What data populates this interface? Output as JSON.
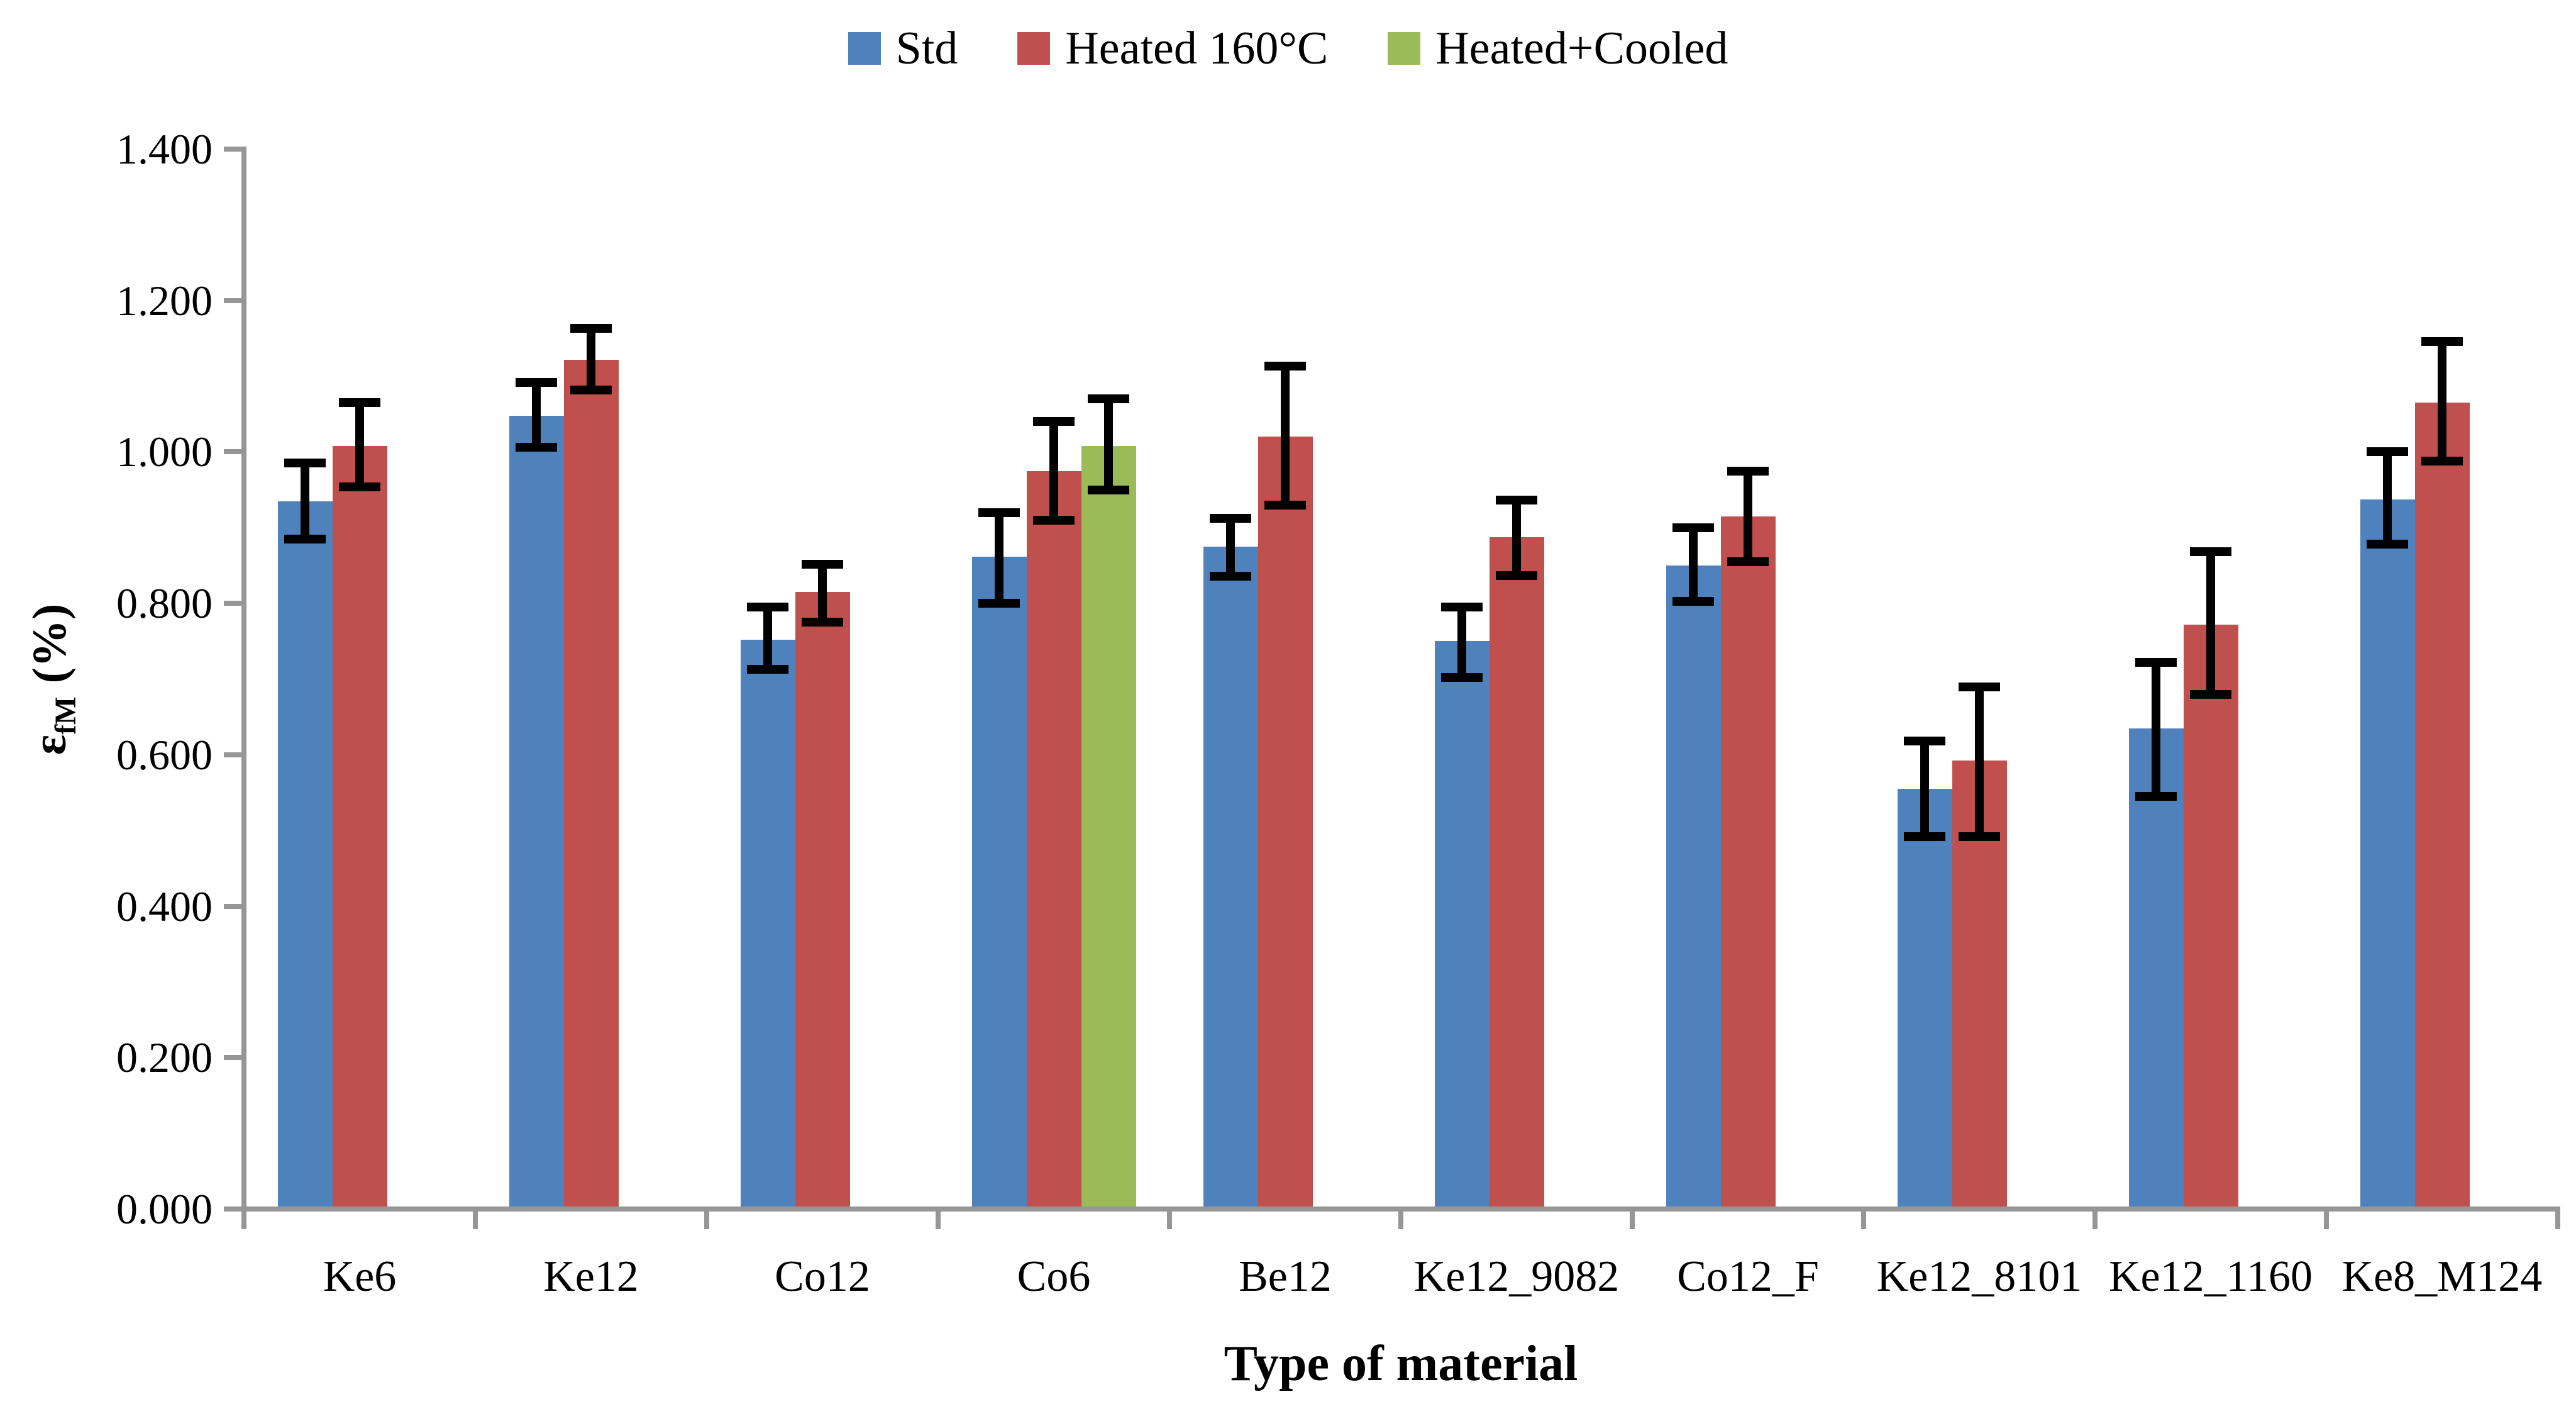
{
  "chart_data": {
    "type": "bar",
    "title": "",
    "xlabel": "Type of material",
    "ylabel": "εfM (%)",
    "ylabel_parts": {
      "symbol": "ε",
      "sub": "fM",
      "unit": "(%)"
    },
    "ylim": [
      0,
      1.4
    ],
    "ytick_step": 0.2,
    "ytick_labels": [
      "0.000",
      "0.200",
      "0.400",
      "0.600",
      "0.800",
      "1.000",
      "1.200",
      "1.400"
    ],
    "grid": "off",
    "legend_position": "top",
    "axis_color": "#969696",
    "error_bar_color": "#000000",
    "categories": [
      "Ke6",
      "Ke12",
      "Co12",
      "Co6",
      "Be12",
      "Ke12_9082",
      "Co12_F",
      "Ke12_8101",
      "Ke12_1160",
      "Ke8_M124"
    ],
    "series": [
      {
        "name": "Std",
        "color": "#4F81BD",
        "values": [
          0.935,
          1.048,
          0.752,
          0.862,
          0.875,
          0.75,
          0.85,
          0.555,
          0.635,
          0.937
        ],
        "err_lo": [
          0.885,
          1.006,
          0.713,
          0.8,
          0.836,
          0.702,
          0.803,
          0.492,
          0.545,
          0.878
        ],
        "err_hi": [
          0.985,
          1.092,
          0.795,
          0.92,
          0.912,
          0.795,
          0.9,
          0.618,
          0.722,
          1.0
        ]
      },
      {
        "name": "Heated 160°C",
        "color": "#C0504D",
        "values": [
          1.008,
          1.122,
          0.815,
          0.975,
          1.02,
          0.887,
          0.915,
          0.592,
          0.772,
          1.065
        ],
        "err_lo": [
          0.954,
          1.082,
          0.775,
          0.91,
          0.93,
          0.837,
          0.855,
          0.492,
          0.68,
          0.988
        ],
        "err_hi": [
          1.065,
          1.163,
          0.852,
          1.04,
          1.113,
          0.936,
          0.975,
          0.69,
          0.868,
          1.146
        ]
      },
      {
        "name": "Heated+Cooled",
        "color": "#9BBB59",
        "values": [
          null,
          null,
          null,
          1.008,
          null,
          null,
          null,
          null,
          null,
          null
        ],
        "err_lo": [
          null,
          null,
          null,
          0.95,
          null,
          null,
          null,
          null,
          null,
          null
        ],
        "err_hi": [
          null,
          null,
          null,
          1.07,
          null,
          null,
          null,
          null,
          null,
          null
        ]
      }
    ]
  }
}
